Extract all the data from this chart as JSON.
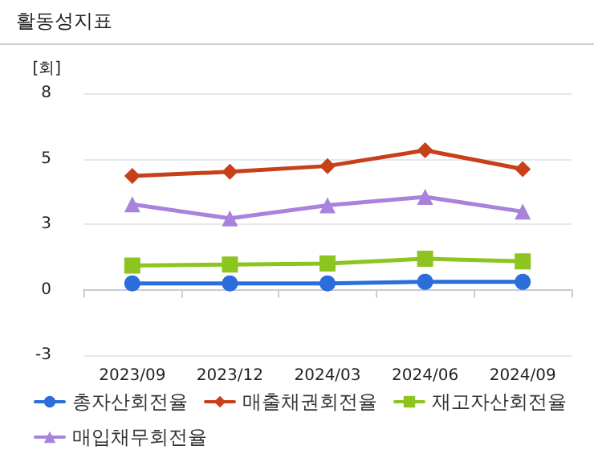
{
  "chart_data": {
    "type": "line",
    "title": "활동성지표",
    "ylabel": "[회]",
    "categories": [
      "2023/09",
      "2023/12",
      "2024/03",
      "2024/06",
      "2024/09"
    ],
    "series": [
      {
        "name": "총자산회전율",
        "color": "#2a6ddb",
        "marker": "circle",
        "values": [
          0.24,
          0.24,
          0.24,
          0.3,
          0.3
        ]
      },
      {
        "name": "매출채권회전율",
        "color": "#c8401a",
        "marker": "diamond",
        "values": [
          4.34,
          4.5,
          4.72,
          5.32,
          4.6
        ]
      },
      {
        "name": "재고자산회전율",
        "color": "#8cc420",
        "marker": "square",
        "values": [
          0.92,
          0.96,
          1.0,
          1.18,
          1.08
        ]
      },
      {
        "name": "매입채무회전율",
        "color": "#a882dc",
        "marker": "triangle",
        "values": [
          3.26,
          2.72,
          3.22,
          3.54,
          2.98
        ]
      }
    ],
    "ylim": [
      -2.5,
      7.5
    ],
    "yticks": [
      {
        "value": -2.5,
        "label": "-3"
      },
      {
        "value": 0,
        "label": "0"
      },
      {
        "value": 2.5,
        "label": "3"
      },
      {
        "value": 5,
        "label": "5"
      },
      {
        "value": 7.5,
        "label": "8"
      }
    ],
    "grid": "y",
    "legend": "bottom"
  }
}
